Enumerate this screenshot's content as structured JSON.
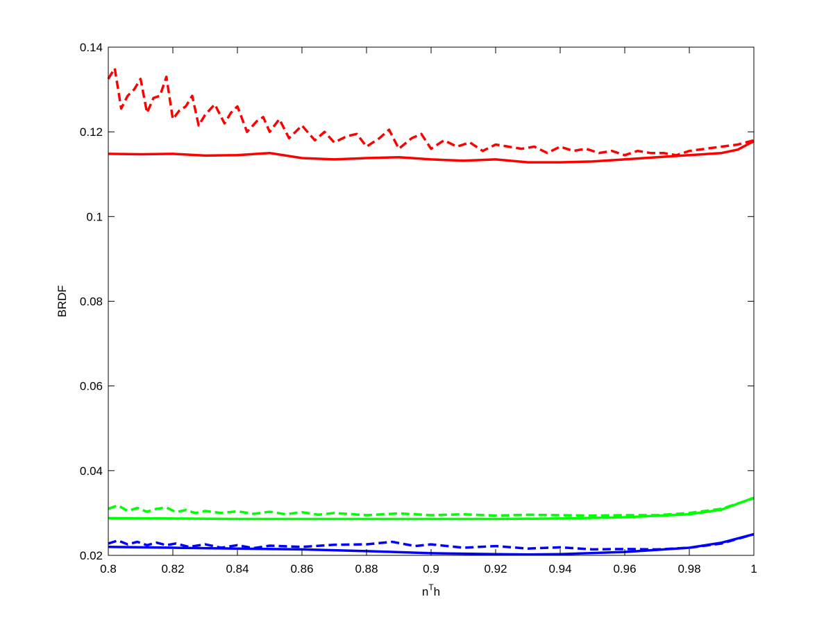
{
  "chart_data": {
    "type": "line",
    "title": "",
    "xlabel": "n",
    "xlabel_superscript": "T",
    "xlabel_suffix": "h",
    "ylabel": "BRDF",
    "xlim": [
      0.8,
      1.0
    ],
    "ylim": [
      0.02,
      0.14
    ],
    "xticks": [
      0.8,
      0.82,
      0.84,
      0.86,
      0.88,
      0.9,
      0.92,
      0.94,
      0.96,
      0.98,
      1.0
    ],
    "xtick_labels": [
      "0.8",
      "0.82",
      "0.84",
      "0.86",
      "0.88",
      "0.9",
      "0.92",
      "0.94",
      "0.96",
      "0.98",
      "1"
    ],
    "yticks": [
      0.02,
      0.04,
      0.06,
      0.08,
      0.1,
      0.12,
      0.14
    ],
    "ytick_labels": [
      "0.02",
      "0.04",
      "0.06",
      "0.08",
      "0.1",
      "0.12",
      "0.14"
    ],
    "grid": false,
    "legend": false,
    "series": [
      {
        "color": "#ff0000",
        "style": "dashed",
        "x": [
          0.8,
          0.802,
          0.804,
          0.806,
          0.808,
          0.81,
          0.812,
          0.814,
          0.816,
          0.818,
          0.82,
          0.822,
          0.824,
          0.826,
          0.828,
          0.83,
          0.833,
          0.836,
          0.838,
          0.84,
          0.843,
          0.846,
          0.848,
          0.85,
          0.853,
          0.856,
          0.858,
          0.86,
          0.864,
          0.867,
          0.87,
          0.874,
          0.877,
          0.88,
          0.884,
          0.887,
          0.89,
          0.894,
          0.897,
          0.9,
          0.904,
          0.908,
          0.912,
          0.916,
          0.92,
          0.924,
          0.928,
          0.932,
          0.936,
          0.94,
          0.944,
          0.948,
          0.952,
          0.956,
          0.96,
          0.964,
          0.968,
          0.972,
          0.976,
          0.98,
          0.985,
          0.99,
          0.995,
          1.0
        ],
        "y": [
          0.1325,
          0.135,
          0.1255,
          0.1285,
          0.13,
          0.1325,
          0.1245,
          0.128,
          0.1285,
          0.133,
          0.123,
          0.125,
          0.126,
          0.1285,
          0.1215,
          0.124,
          0.1265,
          0.122,
          0.1245,
          0.126,
          0.12,
          0.1225,
          0.1235,
          0.12,
          0.123,
          0.1185,
          0.12,
          0.1215,
          0.118,
          0.12,
          0.1175,
          0.119,
          0.1195,
          0.1165,
          0.1185,
          0.1205,
          0.116,
          0.1185,
          0.1195,
          0.116,
          0.118,
          0.1165,
          0.1175,
          0.1155,
          0.117,
          0.1165,
          0.116,
          0.1165,
          0.115,
          0.1165,
          0.1155,
          0.116,
          0.115,
          0.1155,
          0.1145,
          0.1155,
          0.115,
          0.115,
          0.1145,
          0.1155,
          0.116,
          0.1165,
          0.117,
          0.118
        ]
      },
      {
        "color": "#ff0000",
        "style": "solid",
        "x": [
          0.8,
          0.81,
          0.82,
          0.83,
          0.84,
          0.85,
          0.86,
          0.87,
          0.88,
          0.89,
          0.9,
          0.91,
          0.92,
          0.93,
          0.94,
          0.95,
          0.96,
          0.97,
          0.98,
          0.99,
          0.995,
          1.0
        ],
        "y": [
          0.1148,
          0.1147,
          0.1148,
          0.1144,
          0.1145,
          0.115,
          0.1138,
          0.1135,
          0.1138,
          0.114,
          0.1135,
          0.1132,
          0.1135,
          0.1128,
          0.1128,
          0.113,
          0.1135,
          0.114,
          0.1145,
          0.115,
          0.1158,
          0.1178
        ]
      },
      {
        "color": "#00ff00",
        "style": "dashed",
        "x": [
          0.8,
          0.803,
          0.806,
          0.809,
          0.812,
          0.815,
          0.818,
          0.821,
          0.824,
          0.827,
          0.83,
          0.835,
          0.84,
          0.845,
          0.85,
          0.855,
          0.86,
          0.865,
          0.87,
          0.88,
          0.89,
          0.9,
          0.91,
          0.92,
          0.93,
          0.94,
          0.95,
          0.96,
          0.97,
          0.98,
          0.99,
          1.0
        ],
        "y": [
          0.031,
          0.0318,
          0.0305,
          0.0312,
          0.0303,
          0.031,
          0.0313,
          0.0302,
          0.0307,
          0.03,
          0.0305,
          0.03,
          0.0304,
          0.0298,
          0.0303,
          0.0297,
          0.0302,
          0.0296,
          0.03,
          0.0295,
          0.0299,
          0.0295,
          0.0297,
          0.0294,
          0.0296,
          0.0295,
          0.0294,
          0.0295,
          0.0295,
          0.03,
          0.031,
          0.0335
        ]
      },
      {
        "color": "#00ff00",
        "style": "solid",
        "x": [
          0.8,
          0.82,
          0.84,
          0.86,
          0.88,
          0.9,
          0.92,
          0.94,
          0.96,
          0.98,
          0.99,
          1.0
        ],
        "y": [
          0.0288,
          0.0287,
          0.0286,
          0.0286,
          0.0286,
          0.0286,
          0.0286,
          0.0287,
          0.029,
          0.0297,
          0.0308,
          0.0336
        ]
      },
      {
        "color": "#0000ff",
        "style": "dashed",
        "x": [
          0.8,
          0.803,
          0.806,
          0.809,
          0.812,
          0.815,
          0.818,
          0.821,
          0.825,
          0.83,
          0.835,
          0.84,
          0.845,
          0.85,
          0.86,
          0.87,
          0.88,
          0.888,
          0.895,
          0.9,
          0.91,
          0.92,
          0.93,
          0.94,
          0.95,
          0.96,
          0.97,
          0.98,
          0.99,
          1.0
        ],
        "y": [
          0.0228,
          0.0235,
          0.0226,
          0.0232,
          0.0224,
          0.023,
          0.0224,
          0.0228,
          0.022,
          0.0226,
          0.0218,
          0.0224,
          0.0217,
          0.0223,
          0.022,
          0.0225,
          0.0226,
          0.0232,
          0.0222,
          0.0226,
          0.0218,
          0.0222,
          0.0216,
          0.0219,
          0.0214,
          0.0215,
          0.0214,
          0.0218,
          0.0228,
          0.025
        ]
      },
      {
        "color": "#0000ff",
        "style": "solid",
        "x": [
          0.8,
          0.82,
          0.84,
          0.86,
          0.88,
          0.9,
          0.92,
          0.93,
          0.94,
          0.96,
          0.98,
          0.99,
          1.0
        ],
        "y": [
          0.022,
          0.0218,
          0.0216,
          0.0214,
          0.021,
          0.0205,
          0.0203,
          0.0202,
          0.0203,
          0.0208,
          0.0218,
          0.023,
          0.025
        ]
      }
    ]
  }
}
